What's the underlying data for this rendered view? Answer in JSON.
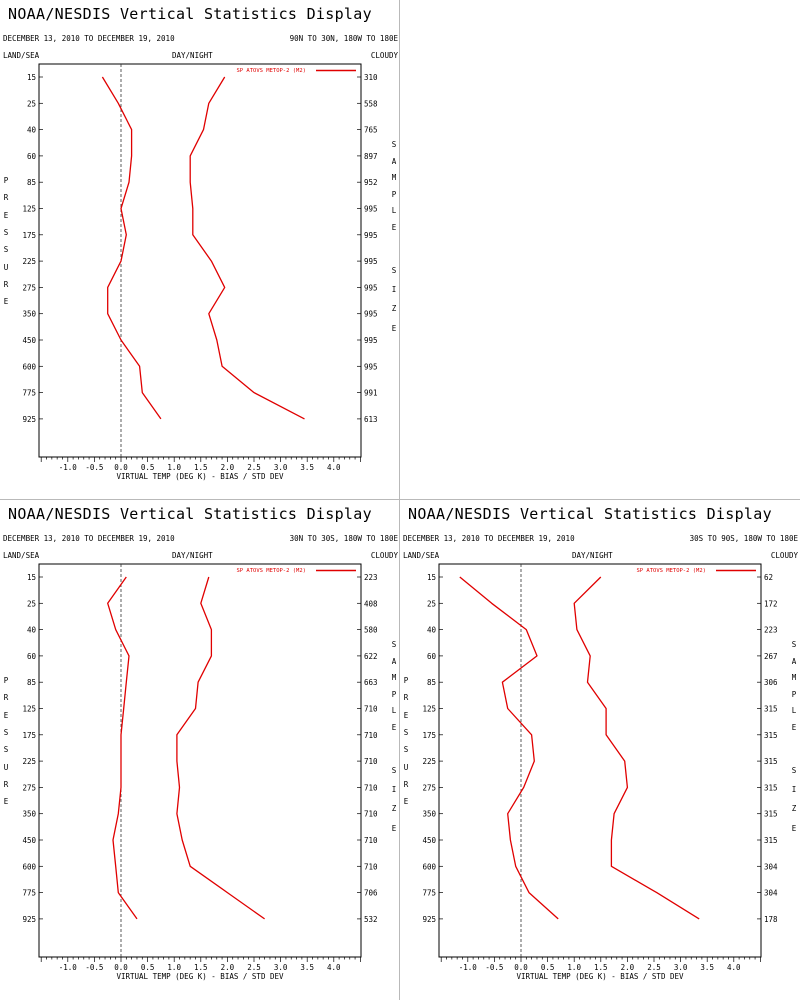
{
  "panels": [
    {
      "title": "NOAA/NESDIS Vertical Statistics Display",
      "date_range": "DECEMBER 13, 2010 TO DECEMBER 19, 2010",
      "region": "90N TO 30N, 180W TO 180E",
      "land_sea": "LAND/SEA",
      "day_night": "DAY/NIGHT",
      "cloudy": "CLOUDY",
      "legend": "SP ATOVS METOP-2 (M2)",
      "xlabel": "VIRTUAL TEMP (DEG K) - BIAS / STD DEV",
      "ylabel_left": "PRESSURE",
      "ylabel_right": [
        "SAMPLE",
        "SIZE"
      ],
      "sample_size": [
        "310",
        "558",
        "765",
        "897",
        "952",
        "995",
        "995",
        "995",
        "995",
        "995",
        "995",
        "995",
        "991",
        "613"
      ]
    },
    {
      "title": "NOAA/NESDIS Vertical Statistics Display",
      "date_range": "DECEMBER 13, 2010 TO DECEMBER 19, 2010",
      "region": "30N TO 30S, 180W TO 180E",
      "land_sea": "LAND/SEA",
      "day_night": "DAY/NIGHT",
      "cloudy": "CLOUDY",
      "legend": "SP ATOVS METOP-2 (M2)",
      "xlabel": "VIRTUAL TEMP (DEG K) - BIAS / STD DEV",
      "ylabel_left": "PRESSURE",
      "ylabel_right": [
        "SAMPLE",
        "SIZE"
      ],
      "sample_size": [
        "223",
        "408",
        "580",
        "622",
        "663",
        "710",
        "710",
        "710",
        "710",
        "710",
        "710",
        "710",
        "706",
        "532"
      ]
    },
    {
      "title": "NOAA/NESDIS Vertical Statistics Display",
      "date_range": "DECEMBER 13, 2010 TO DECEMBER 19, 2010",
      "region": "30S TO 90S, 180W TO 180E",
      "land_sea": "LAND/SEA",
      "day_night": "DAY/NIGHT",
      "cloudy": "CLOUDY",
      "legend": "SP ATOVS METOP-2 (M2)",
      "xlabel": "VIRTUAL TEMP (DEG K) - BIAS / STD DEV",
      "ylabel_left": "PRESSURE",
      "ylabel_right": [
        "SAMPLE",
        "SIZE"
      ],
      "sample_size": [
        "62",
        "172",
        "223",
        "267",
        "306",
        "315",
        "315",
        "315",
        "315",
        "315",
        "315",
        "304",
        "304",
        "178"
      ]
    }
  ],
  "chart_data": [
    {
      "type": "line",
      "x_ticks": [
        "-1.0",
        "-0.5",
        "0.0",
        "0.5",
        "1.0",
        "1.5",
        "2.0",
        "2.5",
        "3.0",
        "3.5",
        "4.0"
      ],
      "xlim": [
        -1.5,
        4.5
      ],
      "pressure_levels": [
        "15",
        "25",
        "40",
        "60",
        "85",
        "125",
        "175",
        "225",
        "275",
        "350",
        "450",
        "600",
        "775",
        "925"
      ],
      "color": "#e00000",
      "series": [
        {
          "values": [
            -0.35,
            -0.05,
            0.2,
            0.2,
            0.15,
            0.0,
            0.1,
            0.0,
            -0.25,
            -0.25,
            0.0,
            0.35,
            0.4,
            0.75
          ]
        },
        {
          "values": [
            1.95,
            1.65,
            1.55,
            1.3,
            1.3,
            1.35,
            1.35,
            1.7,
            1.95,
            1.65,
            1.8,
            1.9,
            2.5,
            3.45
          ]
        }
      ]
    },
    {
      "type": "line",
      "x_ticks": [
        "-1.0",
        "-0.5",
        "0.0",
        "0.5",
        "1.0",
        "1.5",
        "2.0",
        "2.5",
        "3.0",
        "3.5",
        "4.0"
      ],
      "xlim": [
        -1.5,
        4.5
      ],
      "pressure_levels": [
        "15",
        "25",
        "40",
        "60",
        "85",
        "125",
        "175",
        "225",
        "275",
        "350",
        "450",
        "600",
        "775",
        "925"
      ],
      "color": "#e00000",
      "series": [
        {
          "values": [
            0.1,
            -0.25,
            -0.1,
            0.15,
            0.1,
            0.05,
            0.0,
            0.0,
            0.0,
            -0.05,
            -0.15,
            -0.1,
            -0.05,
            0.3
          ]
        },
        {
          "values": [
            1.65,
            1.5,
            1.7,
            1.7,
            1.45,
            1.4,
            1.05,
            1.05,
            1.1,
            1.05,
            1.15,
            1.3,
            2.0,
            2.7
          ]
        }
      ]
    },
    {
      "type": "line",
      "x_ticks": [
        "-1.0",
        "-0.5",
        "0.0",
        "0.5",
        "1.0",
        "1.5",
        "2.0",
        "2.5",
        "3.0",
        "3.5",
        "4.0"
      ],
      "xlim": [
        -1.5,
        4.5
      ],
      "pressure_levels": [
        "15",
        "25",
        "40",
        "60",
        "85",
        "125",
        "175",
        "225",
        "275",
        "350",
        "450",
        "600",
        "775",
        "925"
      ],
      "color": "#e00000",
      "series": [
        {
          "values": [
            -1.15,
            -0.55,
            0.1,
            0.3,
            -0.35,
            -0.25,
            0.2,
            0.25,
            0.05,
            -0.25,
            -0.2,
            -0.1,
            0.15,
            0.7
          ]
        },
        {
          "values": [
            1.5,
            1.0,
            1.05,
            1.3,
            1.25,
            1.6,
            1.6,
            1.95,
            2.0,
            1.75,
            1.7,
            1.7,
            2.55,
            3.35
          ]
        }
      ]
    }
  ]
}
